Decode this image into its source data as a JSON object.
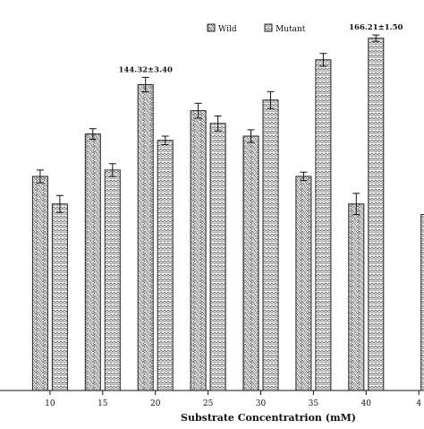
{
  "chart_data": {
    "type": "bar",
    "xlabel": "Substrate Concentratrion (mM)",
    "ylabel": "",
    "categories": [
      "",
      "10",
      "15",
      "20",
      "25",
      "30",
      "35",
      "40",
      "4"
    ],
    "series": [
      {
        "name": "Wild",
        "values": [
          88,
          101,
          121,
          144.32,
          132,
          120,
          101,
          88,
          null
        ],
        "errors": [
          4,
          3,
          2.5,
          3.4,
          3.5,
          3,
          2,
          5,
          null
        ]
      },
      {
        "name": "Mutant",
        "values": [
          null,
          88,
          104,
          118,
          126,
          137,
          156,
          166.21,
          83
        ],
        "errors": [
          null,
          4,
          3,
          2,
          3.5,
          4,
          3,
          1.5,
          2
        ]
      }
    ],
    "ylim": [
      0,
      180
    ],
    "annotations": [
      {
        "text": "144.32±3.40",
        "category": "20",
        "series": "Wild"
      },
      {
        "text": "166.21±1.50",
        "category": "40",
        "series": "Mutant"
      }
    ],
    "legend_position": "top",
    "grid": false,
    "colors": {
      "bar_fill": "#ffffff",
      "bar_pattern": "#555555",
      "axis": "#111111"
    }
  }
}
